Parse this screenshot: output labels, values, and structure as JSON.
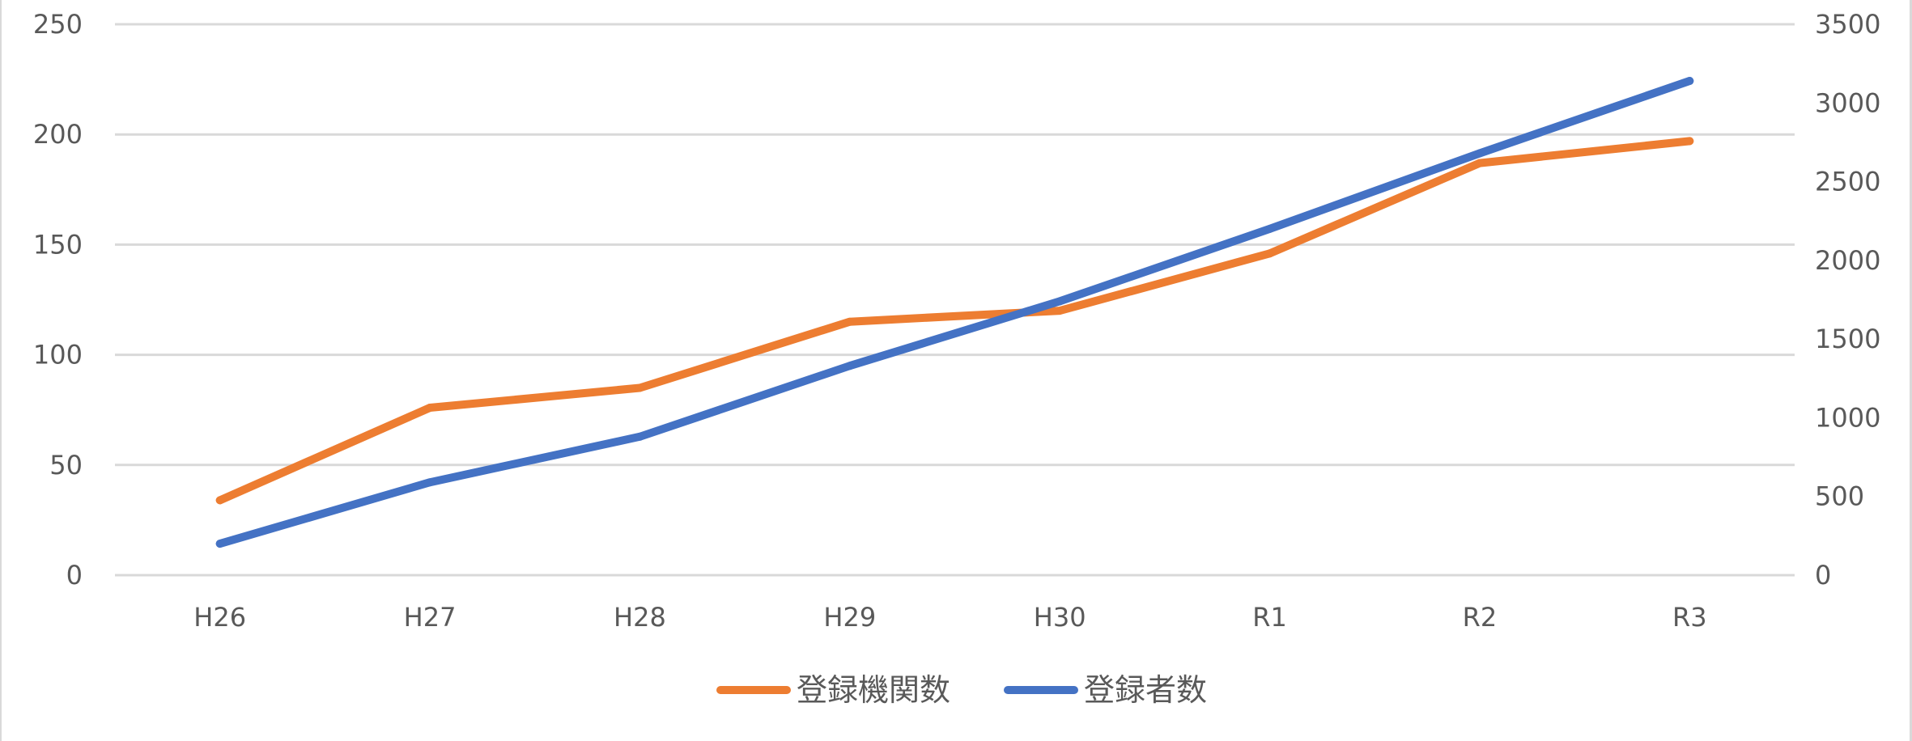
{
  "chart_data": {
    "type": "line",
    "title": "",
    "xlabel": "",
    "ylabel": "",
    "y2label": "",
    "categories": [
      "H26",
      "H27",
      "H28",
      "H29",
      "H30",
      "R1",
      "R2",
      "R3"
    ],
    "ylim": [
      0,
      250
    ],
    "y_ticks": [
      "0",
      "50",
      "100",
      "150",
      "200",
      "250"
    ],
    "y2lim": [
      0,
      3500
    ],
    "y2_ticks": [
      "0",
      "500",
      "1000",
      "1500",
      "2000",
      "2500",
      "3000",
      "3500"
    ],
    "grid": true,
    "legend_position": "bottom",
    "series": [
      {
        "name": "登録機関数",
        "axis": "left",
        "color": "#ED7D31",
        "values": [
          34,
          76,
          85,
          115,
          120,
          146,
          187,
          197
        ]
      },
      {
        "name": "登録者数",
        "axis": "right",
        "color": "#4472C4",
        "values": [
          200,
          590,
          880,
          1330,
          1740,
          2200,
          2680,
          3140
        ]
      }
    ]
  }
}
